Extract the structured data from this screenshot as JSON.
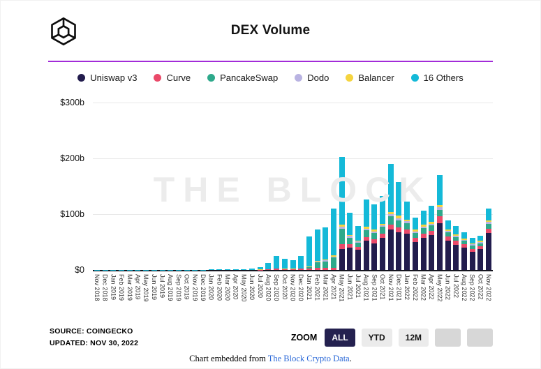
{
  "header": {
    "title": "DEX Volume"
  },
  "colors": {
    "accent_line": "#a22bd8",
    "grid": "#e9e9e9",
    "baseline": "#15151f",
    "watermark_gray": "#ececec",
    "active_button_bg": "#24214f",
    "button_bg": "#ebebeb",
    "blank_button_bg": "#d7d7d7",
    "link_blue": "#2e6bd8"
  },
  "chart_data": {
    "type": "bar",
    "stacked": true,
    "title": "DEX Volume",
    "watermark": "THE BLOCK",
    "xlabel": "",
    "ylabel": "",
    "ylim": [
      0,
      300
    ],
    "y_ticks": [
      "$300b",
      "$200b",
      "$100b",
      "$0"
    ],
    "grid": "horizontal",
    "legend_position": "top",
    "unit": "$ billions per month",
    "categories": [
      "Nov 2018",
      "Dec 2018",
      "Jan 2019",
      "Feb 2019",
      "Mar 2019",
      "Apr 2019",
      "May 2019",
      "Jun 2019",
      "Jul 2019",
      "Aug 2019",
      "Sep 2019",
      "Oct 2019",
      "Nov 2019",
      "Dec 2019",
      "Jan 2020",
      "Feb 2020",
      "Mar 2020",
      "Apr 2020",
      "May 2020",
      "Jun 2020",
      "Jul 2020",
      "Aug 2020",
      "Sep 2020",
      "Oct 2020",
      "Nov 2020",
      "Dec 2020",
      "Jan 2021",
      "Feb 2021",
      "Mar 2021",
      "Apr 2021",
      "May 2021",
      "Jun 2021",
      "Jul 2021",
      "Aug 2021",
      "Sep 2021",
      "Oct 2021",
      "Nov 2021",
      "Dec 2021",
      "Jan 2022",
      "Feb 2022",
      "Mar 2022",
      "Apr 2022",
      "May 2022",
      "Jun 2022",
      "Jul 2022",
      "Aug 2022",
      "Sep 2022",
      "Oct 2022",
      "Nov 2022"
    ],
    "series": [
      {
        "name": "Uniswap v3",
        "color": "#221c4d",
        "values": [
          0,
          0,
          0,
          0,
          0,
          0,
          0,
          0,
          0,
          0,
          0,
          0,
          0,
          0,
          0,
          0,
          0,
          0,
          0,
          0,
          0,
          0,
          0,
          0,
          0,
          0,
          0,
          0,
          0,
          0,
          38,
          40,
          36,
          52,
          48,
          58,
          72,
          67,
          65,
          50,
          57,
          62,
          84,
          52,
          45,
          40,
          33,
          37,
          66
        ]
      },
      {
        "name": "Curve",
        "color": "#ea4969",
        "values": [
          0,
          0,
          0,
          0,
          0,
          0,
          0,
          0,
          0,
          0,
          0,
          0,
          0,
          0,
          0,
          0,
          0,
          0,
          0,
          0,
          0.5,
          1,
          2,
          1.5,
          1.5,
          2,
          3,
          3.5,
          3.5,
          4,
          8,
          6,
          5,
          7,
          7,
          7,
          9,
          9,
          8,
          7,
          8,
          8,
          12,
          8,
          7,
          6,
          5,
          5,
          8
        ]
      },
      {
        "name": "PancakeSwap",
        "color": "#2ea98b",
        "values": [
          0,
          0,
          0,
          0,
          0,
          0,
          0,
          0,
          0,
          0,
          0,
          0,
          0,
          0,
          0,
          0,
          0,
          0,
          0,
          0,
          0,
          0,
          0,
          0,
          0,
          0,
          2,
          10,
          12,
          18,
          28,
          12,
          8,
          12,
          11,
          12,
          15,
          13,
          11,
          9,
          10,
          10,
          12,
          8,
          7,
          6,
          6,
          6,
          9
        ]
      },
      {
        "name": "Dodo",
        "color": "#b9b3e2",
        "values": [
          0,
          0,
          0,
          0,
          0,
          0,
          0,
          0,
          0,
          0,
          0,
          0,
          0,
          0,
          0,
          0,
          0,
          0,
          0,
          0,
          0,
          0,
          0,
          0,
          0,
          0,
          0.5,
          1,
          1.5,
          2,
          4,
          3,
          2,
          3,
          3,
          3,
          4,
          4,
          3,
          3,
          3,
          3,
          4,
          2,
          2,
          2,
          2,
          2,
          3
        ]
      },
      {
        "name": "Balancer",
        "color": "#f5d43f",
        "values": [
          0,
          0,
          0,
          0,
          0,
          0,
          0,
          0,
          0,
          0,
          0,
          0,
          0,
          0,
          0,
          0,
          0,
          0,
          0,
          0,
          0.3,
          0.5,
          1,
          0.8,
          0.7,
          0.8,
          1,
          1.5,
          1.5,
          2,
          3,
          2,
          2,
          3,
          3,
          3,
          4,
          4,
          3,
          3,
          3,
          3,
          4,
          3,
          3,
          2,
          2,
          2,
          3
        ]
      },
      {
        "name": "16 Others",
        "color": "#14b9d8",
        "values": [
          0.2,
          0.2,
          0.2,
          0.2,
          0.2,
          0.2,
          0.2,
          0.2,
          0.3,
          0.3,
          0.3,
          0.3,
          0.3,
          0.3,
          0.8,
          1,
          1.2,
          1,
          1.5,
          2.5,
          4.2,
          10.5,
          22,
          17.7,
          14.8,
          22.2,
          53.5,
          56,
          57.5,
          84,
          122,
          40,
          26,
          49,
          45,
          50,
          86,
          60,
          32,
          22,
          25,
          29,
          54,
          16,
          15,
          11,
          9,
          9,
          21
        ]
      }
    ]
  },
  "footer": {
    "source_line1": "SOURCE: COINGECKO",
    "source_line2": "UPDATED: NOV 30, 2022",
    "zoom_label": "ZOOM",
    "zoom_buttons": [
      {
        "label": "ALL",
        "style": "active"
      },
      {
        "label": "YTD",
        "style": "normal"
      },
      {
        "label": "12M",
        "style": "normal"
      },
      {
        "label": "",
        "style": "blank"
      },
      {
        "label": "",
        "style": "blank"
      }
    ],
    "embed_prefix": "Chart embedded from",
    "embed_link": "The Block Crypto Data",
    "embed_suffix": "."
  }
}
